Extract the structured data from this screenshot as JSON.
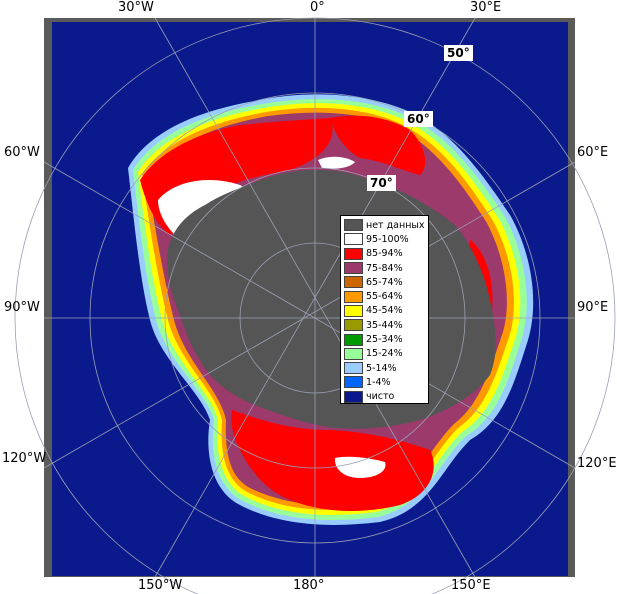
{
  "map": {
    "frame_color": "#5a5a5a",
    "ocean_color": "#0a1a8c",
    "grid_color": "#9aa0b4",
    "land_color": "#555555",
    "ice_colors": {
      "full": "#ffffff",
      "high": "#ff0000",
      "mid": "#9b3a6b",
      "low": "#cc6600"
    }
  },
  "longitude_labels": {
    "top_left": "30°W",
    "top_center": "0°",
    "top_right": "30°E",
    "left_upper": "60°W",
    "right_upper": "60°E",
    "left_middle": "90°W",
    "right_middle": "90°E",
    "left_lower": "120°W",
    "right_lower": "120°E",
    "bottom_left": "150°W",
    "bottom_center": "180°",
    "bottom_right": "150°E"
  },
  "latitude_labels": {
    "lat50": "50°",
    "lat60": "60°",
    "lat70": "70°"
  },
  "legend": {
    "items": [
      {
        "label": "нет данных",
        "color": "#555555"
      },
      {
        "label": "95-100%",
        "color": "#ffffff"
      },
      {
        "label": "85-94%",
        "color": "#ff0000"
      },
      {
        "label": "75-84%",
        "color": "#9b3a6b"
      },
      {
        "label": "65-74%",
        "color": "#cc6600"
      },
      {
        "label": "55-64%",
        "color": "#ff9900"
      },
      {
        "label": "45-54%",
        "color": "#ffff00"
      },
      {
        "label": "35-44%",
        "color": "#999900"
      },
      {
        "label": "25-34%",
        "color": "#009900"
      },
      {
        "label": "15-24%",
        "color": "#99ff99"
      },
      {
        "label": "5-14%",
        "color": "#99ccff"
      },
      {
        "label": "1-4%",
        "color": "#0066ff"
      },
      {
        "label": "чисто",
        "color": "#0a1a8c"
      }
    ]
  }
}
